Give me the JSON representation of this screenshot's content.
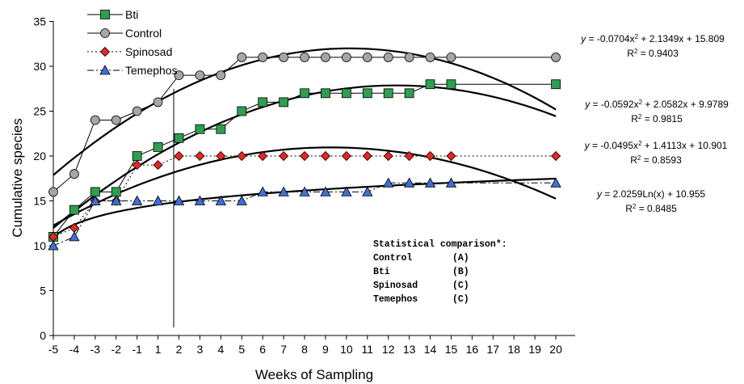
{
  "chart_data": {
    "type": "line",
    "title": "",
    "xlabel": "Weeks of Sampling",
    "ylabel": "Cumulative species",
    "x": [
      -5,
      -4,
      -3,
      -2,
      -1,
      1,
      2,
      3,
      4,
      5,
      6,
      7,
      8,
      9,
      10,
      11,
      12,
      13,
      14,
      15,
      20
    ],
    "x_ticks": [
      "-5",
      "-4",
      "-3",
      "-2",
      "-1",
      "1",
      "2",
      "3",
      "4",
      "5",
      "6",
      "7",
      "8",
      "9",
      "10",
      "11",
      "12",
      "13",
      "14",
      "15",
      "16",
      "17",
      "18",
      "19",
      "20"
    ],
    "y_ticks": [
      "0",
      "5",
      "10",
      "15",
      "20",
      "25",
      "30",
      "35"
    ],
    "ylim": [
      0,
      35
    ],
    "grid": false,
    "legend_position": "top-left",
    "series": [
      {
        "name": "Bti",
        "marker": "square",
        "color": "#2e9e4f",
        "line_style": "solid",
        "values": [
          11,
          14,
          16,
          16,
          20,
          21,
          22,
          23,
          23,
          25,
          26,
          26,
          27,
          27,
          27,
          27,
          27,
          27,
          28,
          28,
          28
        ]
      },
      {
        "name": "Control",
        "marker": "circle",
        "color": "#a6a6a6",
        "line_style": "solid",
        "values": [
          16,
          18,
          24,
          24,
          25,
          26,
          29,
          29,
          29,
          31,
          31,
          31,
          31,
          31,
          31,
          31,
          31,
          31,
          31,
          31,
          31
        ]
      },
      {
        "name": "Spinosad",
        "marker": "diamond",
        "color": "#e8261f",
        "line_style": "dotted",
        "values": [
          11,
          12,
          15,
          15,
          19,
          19,
          20,
          20,
          20,
          20,
          20,
          20,
          20,
          20,
          20,
          20,
          20,
          20,
          20,
          20,
          20
        ]
      },
      {
        "name": "Temephos",
        "marker": "triangle",
        "color": "#3f6fd6",
        "line_style": "dashdot",
        "values": [
          10,
          11,
          15,
          15,
          15,
          15,
          15,
          15,
          15,
          15,
          16,
          16,
          16,
          16,
          16,
          16,
          17,
          17,
          17,
          17,
          17
        ]
      }
    ],
    "trendlines": [
      {
        "series": "Control",
        "type": "poly2",
        "a": -0.0704,
        "b": 2.1349,
        "c": 15.809,
        "equation": "= -0.0704x",
        "equation_tail": " + 2.1349x + 15.809",
        "r2": "= 0.9403"
      },
      {
        "series": "Bti",
        "type": "poly2",
        "a": -0.0592,
        "b": 2.0582,
        "c": 9.9789,
        "equation": "= -0.0592x",
        "equation_tail": " + 2.0582x + 9.9789",
        "r2": "= 0.9815"
      },
      {
        "series": "Spinosad",
        "type": "poly2",
        "a": -0.0495,
        "b": 1.4113,
        "c": 10.901,
        "equation": "= -0.0495x",
        "equation_tail": " + 1.4113x + 10.901",
        "r2": "= 0.8593"
      },
      {
        "series": "Temephos",
        "type": "log",
        "a": 2.0259,
        "b": 10.955,
        "equation": "= 2.0259Ln(x) + 10.955",
        "r2": "= 0.8485"
      }
    ],
    "reference_line_between": [
      "-1",
      "1"
    ],
    "annotation": {
      "title": "Statistical comparison*:",
      "rows": [
        {
          "label": "Control",
          "group": "(A)"
        },
        {
          "label": "Bti",
          "group": "(B)"
        },
        {
          "label": "Spinosad",
          "group": "(C)"
        },
        {
          "label": "Temephos",
          "group": "(C)"
        }
      ]
    }
  }
}
